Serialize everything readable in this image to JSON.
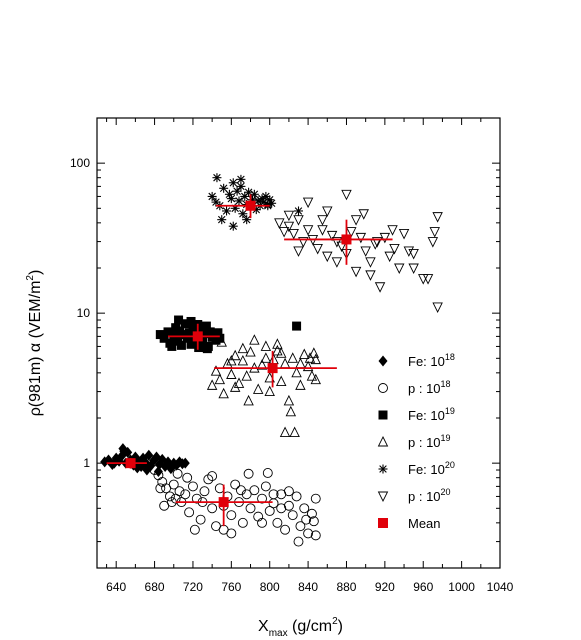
{
  "chart_data": {
    "type": "scatter",
    "xlabel": {
      "base": "X",
      "sub": "max",
      "rest": " (g/cm",
      "sup": "2",
      "end": ")"
    },
    "ylabel": {
      "base": "ρ(981m) α (VEM/m",
      "sup": "2",
      "end": ")"
    },
    "xlim": [
      620,
      1040
    ],
    "ylim": [
      0.2,
      200
    ],
    "yscale": "log",
    "xticks": [
      "640",
      "680",
      "720",
      "760",
      "800",
      "840",
      "880",
      "920",
      "960",
      "1000",
      "1040"
    ],
    "yticks": [
      "1",
      "10",
      "100"
    ],
    "legend_position": "right-center",
    "colors": {
      "data": "#000000",
      "mean": "#e0000a"
    },
    "series": [
      {
        "label": "Fe: 10",
        "sup": "18",
        "marker": "diamond-filled",
        "points": [
          [
            628,
            1.02
          ],
          [
            632,
            1.05
          ],
          [
            636,
            0.98
          ],
          [
            640,
            1.08
          ],
          [
            643,
            1.03
          ],
          [
            646,
            1.12
          ],
          [
            650,
            1.0
          ],
          [
            652,
            1.18
          ],
          [
            655,
            1.05
          ],
          [
            658,
            0.97
          ],
          [
            660,
            1.1
          ],
          [
            663,
            1.02
          ],
          [
            666,
            0.95
          ],
          [
            668,
            1.08
          ],
          [
            671,
            1.0
          ],
          [
            674,
            1.13
          ],
          [
            676,
            0.96
          ],
          [
            679,
            1.04
          ],
          [
            682,
            1.1
          ],
          [
            685,
            0.98
          ],
          [
            688,
            1.06
          ],
          [
            691,
            0.95
          ],
          [
            694,
            1.02
          ],
          [
            697,
            0.92
          ],
          [
            700,
            1.0
          ],
          [
            703,
            0.97
          ],
          [
            706,
            1.02
          ],
          [
            709,
            0.99
          ],
          [
            712,
            1.0
          ],
          [
            638,
            1.0
          ],
          [
            648,
            1.2
          ],
          [
            662,
            0.93
          ],
          [
            672,
            0.9
          ],
          [
            684,
            0.88
          ],
          [
            647,
            1.25
          ]
        ]
      },
      {
        "label": "p : 10",
        "sup": "18",
        "marker": "circle-open",
        "points": [
          [
            680,
            0.9
          ],
          [
            684,
            0.83
          ],
          [
            688,
            0.75
          ],
          [
            692,
            0.68
          ],
          [
            696,
            0.6
          ],
          [
            700,
            0.72
          ],
          [
            704,
            0.85
          ],
          [
            708,
            0.55
          ],
          [
            712,
            0.62
          ],
          [
            716,
            0.47
          ],
          [
            720,
            0.7
          ],
          [
            724,
            0.58
          ],
          [
            728,
            0.42
          ],
          [
            732,
            0.65
          ],
          [
            736,
            0.78
          ],
          [
            740,
            0.5
          ],
          [
            744,
            0.38
          ],
          [
            748,
            0.68
          ],
          [
            752,
            0.52
          ],
          [
            756,
            0.6
          ],
          [
            760,
            0.45
          ],
          [
            764,
            0.72
          ],
          [
            768,
            0.55
          ],
          [
            772,
            0.4
          ],
          [
            776,
            0.62
          ],
          [
            780,
            0.5
          ],
          [
            784,
            0.66
          ],
          [
            788,
            0.44
          ],
          [
            792,
            0.58
          ],
          [
            796,
            0.7
          ],
          [
            800,
            0.48
          ],
          [
            804,
            0.54
          ],
          [
            808,
            0.4
          ],
          [
            812,
            0.62
          ],
          [
            816,
            0.36
          ],
          [
            820,
            0.52
          ],
          [
            824,
            0.45
          ],
          [
            828,
            0.6
          ],
          [
            832,
            0.38
          ],
          [
            836,
            0.5
          ],
          [
            840,
            0.34
          ],
          [
            844,
            0.46
          ],
          [
            848,
            0.58
          ],
          [
            848,
            0.33
          ],
          [
            846,
            0.41
          ],
          [
            690,
            0.52
          ],
          [
            706,
            0.65
          ],
          [
            722,
            0.36
          ],
          [
            740,
            0.82
          ],
          [
            760,
            0.34
          ],
          [
            778,
            0.85
          ],
          [
            798,
            0.86
          ],
          [
            702,
            0.58
          ],
          [
            714,
            0.8
          ],
          [
            730,
            0.55
          ],
          [
            752,
            0.36
          ],
          [
            770,
            0.66
          ],
          [
            792,
            0.4
          ],
          [
            812,
            0.5
          ],
          [
            830,
            0.3
          ],
          [
            820,
            0.65
          ],
          [
            804,
            0.62
          ],
          [
            838,
            0.42
          ],
          [
            686,
            0.68
          ],
          [
            698,
            0.55
          ]
        ]
      },
      {
        "label": "Fe: 10",
        "sup": "19",
        "marker": "square-filled",
        "points": [
          [
            686,
            7.2
          ],
          [
            690,
            6.8
          ],
          [
            694,
            7.5
          ],
          [
            696,
            6.3
          ],
          [
            700,
            7.0
          ],
          [
            702,
            8.0
          ],
          [
            704,
            6.5
          ],
          [
            706,
            7.6
          ],
          [
            708,
            6.1
          ],
          [
            710,
            7.2
          ],
          [
            712,
            8.5
          ],
          [
            714,
            6.8
          ],
          [
            716,
            7.4
          ],
          [
            718,
            6.2
          ],
          [
            720,
            7.9
          ],
          [
            722,
            6.6
          ],
          [
            724,
            7.1
          ],
          [
            726,
            5.9
          ],
          [
            728,
            7.7
          ],
          [
            730,
            6.4
          ],
          [
            732,
            7.3
          ],
          [
            734,
            8.2
          ],
          [
            736,
            6.0
          ],
          [
            738,
            7.5
          ],
          [
            740,
            6.9
          ],
          [
            742,
            7.0
          ],
          [
            744,
            6.6
          ],
          [
            746,
            7.4
          ],
          [
            748,
            6.8
          ],
          [
            705,
            9.0
          ],
          [
            718,
            8.8
          ],
          [
            698,
            6.0
          ],
          [
            735,
            5.8
          ],
          [
            725,
            8.4
          ],
          [
            828,
            8.2
          ]
        ]
      },
      {
        "label": "p : 10",
        "sup": "19",
        "marker": "triangle-open",
        "points": [
          [
            740,
            3.3
          ],
          [
            744,
            4.1
          ],
          [
            748,
            3.6
          ],
          [
            752,
            2.9
          ],
          [
            756,
            4.6
          ],
          [
            760,
            3.9
          ],
          [
            764,
            5.2
          ],
          [
            768,
            3.4
          ],
          [
            772,
            4.8
          ],
          [
            776,
            3.8
          ],
          [
            780,
            5.5
          ],
          [
            784,
            4.3
          ],
          [
            788,
            3.1
          ],
          [
            792,
            4.5
          ],
          [
            796,
            6.0
          ],
          [
            800,
            3.7
          ],
          [
            804,
            4.9
          ],
          [
            808,
            5.6
          ],
          [
            812,
            3.5
          ],
          [
            816,
            4.6
          ],
          [
            820,
            2.6
          ],
          [
            824,
            5.0
          ],
          [
            828,
            4.0
          ],
          [
            832,
            3.3
          ],
          [
            836,
            5.3
          ],
          [
            840,
            4.4
          ],
          [
            844,
            3.8
          ],
          [
            848,
            4.9
          ],
          [
            848,
            3.6
          ],
          [
            816,
            1.6
          ],
          [
            826,
            1.6
          ],
          [
            822,
            2.2
          ],
          [
            808,
            6.2
          ],
          [
            796,
            5.0
          ],
          [
            784,
            6.6
          ],
          [
            772,
            5.8
          ],
          [
            760,
            4.8
          ],
          [
            750,
            6.4
          ],
          [
            842,
            5.0
          ],
          [
            832,
            4.6
          ],
          [
            812,
            5.4
          ],
          [
            764,
            3.2
          ],
          [
            778,
            2.6
          ],
          [
            846,
            5.4
          ],
          [
            800,
            3.0
          ]
        ]
      },
      {
        "label": "Fe: 10",
        "sup": "20",
        "marker": "asterisk",
        "points": [
          [
            740,
            60
          ],
          [
            744,
            55
          ],
          [
            748,
            52
          ],
          [
            752,
            68
          ],
          [
            755,
            48
          ],
          [
            758,
            62
          ],
          [
            760,
            58
          ],
          [
            762,
            74
          ],
          [
            764,
            50
          ],
          [
            766,
            65
          ],
          [
            768,
            56
          ],
          [
            770,
            70
          ],
          [
            772,
            46
          ],
          [
            774,
            60
          ],
          [
            776,
            53
          ],
          [
            778,
            64
          ],
          [
            780,
            51
          ],
          [
            782,
            57
          ],
          [
            784,
            62
          ],
          [
            786,
            49
          ],
          [
            788,
            56
          ],
          [
            790,
            52
          ],
          [
            792,
            58
          ],
          [
            794,
            55
          ],
          [
            796,
            60
          ],
          [
            798,
            53
          ],
          [
            800,
            57
          ],
          [
            802,
            54
          ],
          [
            745,
            80
          ],
          [
            750,
            42
          ],
          [
            762,
            38
          ],
          [
            770,
            78
          ],
          [
            776,
            42
          ],
          [
            798,
            52
          ],
          [
            830,
            48
          ]
        ]
      },
      {
        "label": "p : 10",
        "sup": "20",
        "marker": "triangle-down-open",
        "points": [
          [
            810,
            40
          ],
          [
            815,
            35
          ],
          [
            820,
            38
          ],
          [
            825,
            34
          ],
          [
            830,
            42
          ],
          [
            835,
            30
          ],
          [
            840,
            36
          ],
          [
            845,
            31
          ],
          [
            850,
            27
          ],
          [
            855,
            36
          ],
          [
            860,
            24
          ],
          [
            865,
            33
          ],
          [
            870,
            30
          ],
          [
            875,
            28
          ],
          [
            880,
            25
          ],
          [
            885,
            35
          ],
          [
            890,
            19
          ],
          [
            895,
            32
          ],
          [
            900,
            26
          ],
          [
            905,
            18
          ],
          [
            910,
            29
          ],
          [
            915,
            15
          ],
          [
            920,
            32
          ],
          [
            925,
            24
          ],
          [
            930,
            27
          ],
          [
            935,
            20
          ],
          [
            940,
            34
          ],
          [
            945,
            26
          ],
          [
            950,
            25
          ],
          [
            960,
            17
          ],
          [
            965,
            17
          ],
          [
            970,
            30
          ],
          [
            975,
            44
          ],
          [
            975,
            11
          ],
          [
            972,
            35
          ],
          [
            880,
            62
          ],
          [
            860,
            48
          ],
          [
            840,
            55
          ],
          [
            820,
            45
          ],
          [
            905,
            22
          ],
          [
            928,
            36
          ],
          [
            950,
            20
          ],
          [
            890,
            42
          ],
          [
            870,
            22
          ],
          [
            912,
            30
          ],
          [
            855,
            42
          ],
          [
            898,
            46
          ],
          [
            830,
            26
          ]
        ]
      },
      {
        "label": "Mean",
        "sup": "",
        "marker": "square-red",
        "points": []
      }
    ],
    "means": [
      {
        "x": 655,
        "y": 1.0,
        "xerr": [
          630,
          672
        ],
        "yerr": [
          0.92,
          1.08
        ]
      },
      {
        "x": 752,
        "y": 0.55,
        "xerr": [
          702,
          803
        ],
        "yerr": [
          0.38,
          0.72
        ]
      },
      {
        "x": 725,
        "y": 7.0,
        "xerr": [
          694,
          748
        ],
        "yerr": [
          5.7,
          8.5
        ]
      },
      {
        "x": 803,
        "y": 4.3,
        "xerr": [
          742,
          870
        ],
        "yerr": [
          3.2,
          5.6
        ]
      },
      {
        "x": 780,
        "y": 52,
        "xerr": [
          744,
          800
        ],
        "yerr": [
          43,
          62
        ]
      },
      {
        "x": 880,
        "y": 31,
        "xerr": [
          815,
          928
        ],
        "yerr": [
          21,
          42
        ]
      }
    ]
  }
}
